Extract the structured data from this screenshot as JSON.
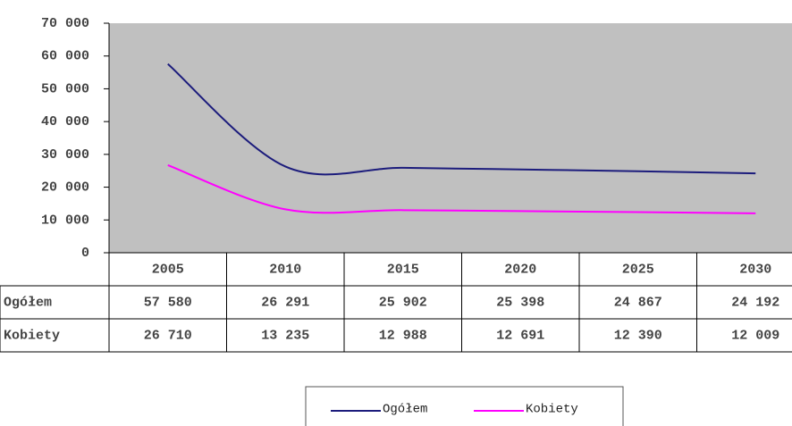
{
  "chart_data": {
    "type": "line",
    "categories": [
      "2005",
      "2010",
      "2015",
      "2020",
      "2025",
      "2030"
    ],
    "series": [
      {
        "name": "Ogółem",
        "color": "#1c1c7c",
        "values": [
          57580,
          26291,
          25902,
          25398,
          24867,
          24192
        ],
        "value_labels": [
          "57 580",
          "26 291",
          "25 902",
          "25 398",
          "24 867",
          "24 192"
        ]
      },
      {
        "name": "Kobiety",
        "color": "#ff00ff",
        "values": [
          26710,
          13235,
          12988,
          12691,
          12390,
          12009
        ],
        "value_labels": [
          "26 710",
          "13 235",
          "12 988",
          "12 691",
          "12 390",
          "12 009"
        ]
      }
    ],
    "ylim": [
      0,
      70000
    ],
    "yticks": [
      {
        "value": 0,
        "label": "0"
      },
      {
        "value": 10000,
        "label": "10 000"
      },
      {
        "value": 20000,
        "label": "20 000"
      },
      {
        "value": 30000,
        "label": "30 000"
      },
      {
        "value": 40000,
        "label": "40 000"
      },
      {
        "value": 50000,
        "label": "50 000"
      },
      {
        "value": 60000,
        "label": "60 000"
      },
      {
        "value": 70000,
        "label": "70 000"
      }
    ],
    "legend": "bottom"
  }
}
